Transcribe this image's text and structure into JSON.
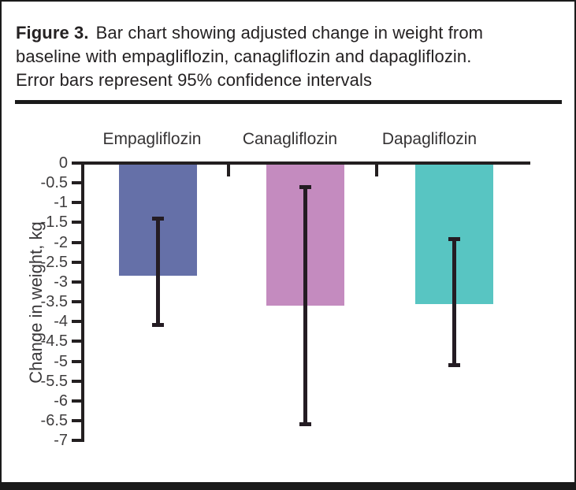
{
  "figure": {
    "label": "Figure 3.",
    "caption_line1": "Bar chart showing adjusted change in weight from",
    "caption_line2": "baseline with empagliflozin, canagliflozin and dapagliflozin.",
    "caption_line3": "Error bars represent 95% confidence intervals"
  },
  "chart_data": {
    "type": "bar",
    "categories": [
      "Empagliflozin",
      "Canagliflozin",
      "Dapagliflozin"
    ],
    "values": [
      -2.85,
      -3.6,
      -3.55
    ],
    "error_bars_95ci": [
      [
        -4.1,
        -1.4
      ],
      [
        -6.6,
        -0.6
      ],
      [
        -5.1,
        -1.9
      ]
    ],
    "xlabel": "",
    "ylabel": "Change in weight, kg",
    "ylim": [
      -7,
      0
    ],
    "ytick_step": 0.5,
    "ytick_labels": [
      "0",
      "-0.5",
      "-1",
      "-1.5",
      "-2",
      "-2.5",
      "-3",
      "-3.5",
      "-4",
      "-4.5",
      "-5",
      "-5.5",
      "-6",
      "-6.5",
      "-7"
    ],
    "bar_colors": [
      "#6570a8",
      "#c48bbf",
      "#58c5c2"
    ],
    "error_bar_color": "#241c23",
    "axis_color": "#231f20",
    "grid": false,
    "legend": false
  }
}
